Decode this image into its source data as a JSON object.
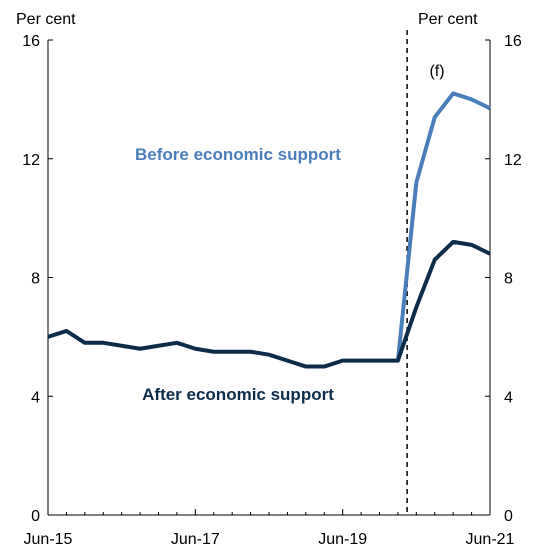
{
  "chart_data": {
    "type": "line",
    "title": "",
    "xlabel": "",
    "y_unit_left": "Per cent",
    "y_unit_right": "Per cent",
    "ylim": [
      0,
      16
    ],
    "yticks": [
      "0",
      "4",
      "8",
      "12",
      "16"
    ],
    "xlim": [
      "Jun-15",
      "Jun-21"
    ],
    "xticks": [
      "Jun-15",
      "Jun-17",
      "Jun-19",
      "Jun-21"
    ],
    "forecast_marker": {
      "label": "(f)",
      "x": "Mar-20"
    },
    "x": [
      "Jun-15",
      "Sep-15",
      "Dec-15",
      "Mar-16",
      "Jun-16",
      "Sep-16",
      "Dec-16",
      "Mar-17",
      "Jun-17",
      "Sep-17",
      "Dec-17",
      "Mar-18",
      "Jun-18",
      "Sep-18",
      "Dec-18",
      "Mar-19",
      "Jun-19",
      "Sep-19",
      "Dec-19",
      "Mar-20",
      "Jun-20",
      "Sep-20",
      "Dec-20",
      "Mar-21",
      "Jun-21"
    ],
    "series": [
      {
        "name": "Before economic support",
        "color": "#4a7ebb",
        "values": [
          null,
          null,
          null,
          null,
          null,
          null,
          null,
          null,
          null,
          null,
          null,
          null,
          null,
          null,
          null,
          null,
          null,
          null,
          null,
          null,
          11.2,
          13.4,
          14.2,
          14.0,
          13.7
        ]
      },
      {
        "name": "After economic support",
        "color": "#0d2c4a",
        "values": [
          6.0,
          6.2,
          5.8,
          5.8,
          5.7,
          5.6,
          5.7,
          5.8,
          5.6,
          5.5,
          5.5,
          5.5,
          5.4,
          5.2,
          5.0,
          5.0,
          5.2,
          5.2,
          5.2,
          5.2,
          7.0,
          8.6,
          9.2,
          9.1,
          8.8
        ]
      }
    ]
  }
}
